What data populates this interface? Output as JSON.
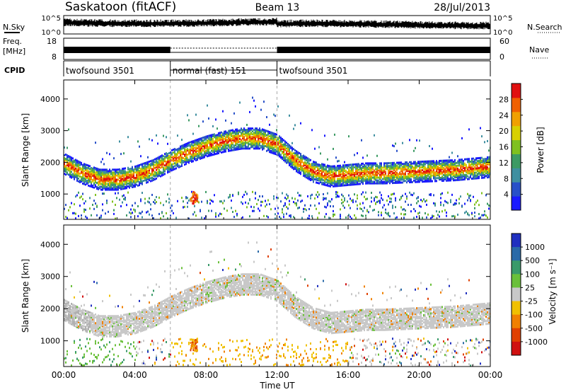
{
  "header": {
    "title": "Saskatoon (fitACF)",
    "beam": "Beam 13",
    "date": "28/Jul/2013"
  },
  "strips": {
    "nsky": {
      "label": "N.Sky",
      "right_label": "N.Search",
      "left_ticks": [
        "10^5",
        "10^0"
      ],
      "right_ticks": [
        "10^5",
        "10^0"
      ]
    },
    "freq": {
      "label_line1": "Freq.",
      "label_line2": "[MHz]",
      "left_ticks": [
        "18",
        "8"
      ],
      "right_ticks": [
        "60",
        "0"
      ],
      "right_label": "Nave"
    },
    "cpid": {
      "label": "CPID",
      "segments": [
        {
          "name": "twofsound 3501",
          "start_h": 0,
          "end_h": 6
        },
        {
          "name": "normal (fast) 151",
          "start_h": 6,
          "end_h": 12
        },
        {
          "name": "twofsound 3501",
          "start_h": 12,
          "end_h": 24
        }
      ]
    }
  },
  "chart_data": [
    {
      "type": "heatmap",
      "panel": "power",
      "ylabel": "Slant Range [km]",
      "y_ticks": [
        "1000",
        "2000",
        "3000",
        "4000"
      ],
      "ylim": [
        200,
        4600
      ],
      "xlim_hours": [
        0,
        24
      ],
      "colorbar": {
        "label": "Power [dB]",
        "ticks": [
          "4",
          "8",
          "12",
          "16",
          "20",
          "24",
          "28"
        ],
        "range": [
          0,
          32
        ],
        "colors": [
          "#1a1aff",
          "#2850c8",
          "#3f8fa0",
          "#3c9a64",
          "#7fc01f",
          "#d8d000",
          "#f0a000",
          "#f06000",
          "#e01010"
        ]
      },
      "colors": {
        "main_band": "#3f8fa0",
        "band_core": "#f0a000",
        "scatter": "#2850c8",
        "hot": "#e01010"
      }
    },
    {
      "type": "heatmap",
      "panel": "velocity",
      "ylabel": "Slant Range [km]",
      "y_ticks": [
        "1000",
        "2000",
        "3000",
        "4000"
      ],
      "ylim": [
        200,
        4600
      ],
      "xlim_hours": [
        0,
        24
      ],
      "xlabel": "Time UT",
      "x_ticks": [
        "00:00",
        "04:00",
        "08:00",
        "12:00",
        "16:00",
        "20:00",
        "00:00"
      ],
      "colorbar": {
        "label": "Velocity [m s⁻¹]",
        "ticks": [
          "1000",
          "500",
          "100",
          "25",
          "-25",
          "-100",
          "-500",
          "-1000"
        ],
        "colors": [
          "#2030c0",
          "#2a6aa8",
          "#3a9a6a",
          "#6ac03a",
          "#c8c8c8",
          "#f0c000",
          "#f08000",
          "#e04000",
          "#d01010"
        ]
      },
      "colors": {
        "ground_scatter": "#c8c8c8",
        "negative": "#f0a030",
        "positive": "#5aa83a"
      }
    }
  ]
}
